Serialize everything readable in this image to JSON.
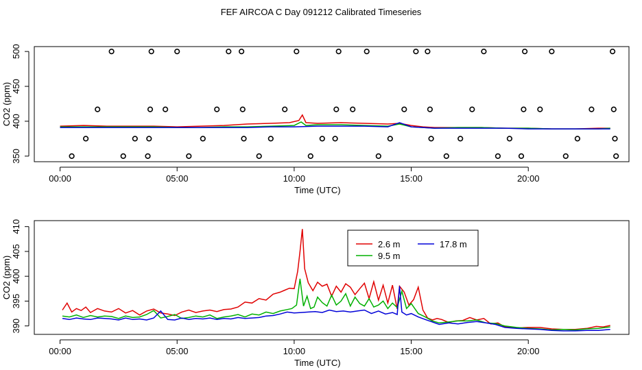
{
  "title": "FEF AIRCOA C  Day 091212  Calibrated Timeseries",
  "colors": {
    "red": "#e00000",
    "green": "#00b000",
    "blue": "#0000d8",
    "black": "#000000"
  },
  "chart_data": [
    {
      "id": "top",
      "type": "line+scatter",
      "xlabel": "Time (UTC)",
      "ylabel": "CO2 (ppm)",
      "xlim": [
        -1.1,
        24.3
      ],
      "ylim": [
        342,
        507
      ],
      "xticks": [
        0,
        5,
        10,
        15,
        20
      ],
      "xtick_labels": [
        "00:00",
        "05:00",
        "10:00",
        "15:00",
        "20:00"
      ],
      "yticks": [
        350,
        400,
        450,
        500
      ],
      "ytick_labels": [
        "350",
        "400",
        "450",
        "500"
      ],
      "markers": {
        "name": "status codes",
        "x": [
          0.5,
          1.1,
          1.6,
          2.2,
          2.7,
          3.2,
          3.75,
          3.8,
          3.85,
          3.9,
          4.5,
          5.0,
          5.5,
          6.1,
          6.7,
          7.2,
          7.75,
          7.8,
          7.85,
          8.5,
          9.0,
          9.6,
          10.1,
          10.7,
          11.2,
          11.75,
          11.8,
          11.9,
          12.5,
          13.1,
          13.6,
          14.1,
          14.7,
          15.2,
          15.7,
          15.8,
          15.85,
          16.5,
          17.1,
          17.6,
          18.1,
          18.7,
          19.2,
          19.7,
          19.8,
          19.85,
          20.5,
          21.0,
          21.6,
          22.1,
          22.7,
          23.6,
          23.65,
          23.7,
          23.75
        ],
        "y": [
          350,
          375,
          417,
          500,
          350,
          375,
          350,
          375,
          417,
          500,
          417,
          500,
          350,
          375,
          417,
          500,
          500,
          417,
          375,
          350,
          375,
          417,
          500,
          350,
          375,
          375,
          417,
          500,
          417,
          500,
          350,
          375,
          417,
          500,
          500,
          417,
          375,
          350,
          375,
          417,
          500,
          350,
          375,
          350,
          417,
          500,
          417,
          500,
          350,
          375,
          417,
          500,
          417,
          375,
          350
        ]
      },
      "series": [
        {
          "name": "2.6 m",
          "color": "#e00000",
          "x": [
            0,
            1,
            2,
            3,
            4,
            5,
            6,
            7,
            8,
            9,
            9.8,
            10.2,
            10.35,
            10.5,
            11,
            12,
            13,
            14,
            14.5,
            15,
            15.5,
            16,
            17,
            18,
            19,
            20,
            21,
            22,
            23,
            23.5
          ],
          "y": [
            393,
            394,
            393,
            393,
            393,
            392,
            393,
            394,
            396,
            397,
            398,
            401,
            409,
            398,
            397,
            398,
            397,
            396,
            397,
            394,
            392,
            391,
            391,
            391,
            390,
            390,
            389,
            389,
            390,
            390
          ]
        },
        {
          "name": "9.5 m",
          "color": "#00b000",
          "x": [
            0,
            1,
            2,
            3,
            4,
            5,
            6,
            7,
            8,
            9,
            10,
            10.3,
            10.5,
            11,
            12,
            13,
            14,
            14.5,
            15,
            16,
            17,
            18,
            19,
            20,
            21,
            22,
            23,
            23.5
          ],
          "y": [
            392,
            392,
            392,
            392,
            392,
            391,
            391,
            392,
            392,
            393,
            394,
            399,
            394,
            395,
            395,
            394,
            393,
            396,
            392,
            390,
            391,
            391,
            390,
            390,
            389,
            389,
            389,
            390
          ]
        },
        {
          "name": "17.8 m",
          "color": "#0000d8",
          "x": [
            0,
            1,
            2,
            3,
            4,
            5,
            6,
            7,
            8,
            9,
            10,
            11,
            12,
            13,
            14,
            14.5,
            15,
            16,
            17,
            18,
            19,
            20,
            21,
            22,
            23,
            23.5
          ],
          "y": [
            391,
            391,
            391,
            391,
            391,
            391,
            391,
            391,
            391,
            392,
            392,
            393,
            393,
            393,
            392,
            398,
            392,
            390,
            390,
            390,
            390,
            389,
            389,
            389,
            389,
            389
          ]
        }
      ]
    },
    {
      "id": "bottom",
      "type": "line",
      "xlabel": "Time (UTC)",
      "ylabel": "CO2 (ppm)",
      "xlim": [
        -1.1,
        24.3
      ],
      "ylim": [
        388.3,
        411.2
      ],
      "xticks": [
        0,
        5,
        10,
        15,
        20
      ],
      "xtick_labels": [
        "00:00",
        "05:00",
        "10:00",
        "15:00",
        "20:00"
      ],
      "yticks": [
        390,
        395,
        400,
        405,
        410
      ],
      "ytick_labels": [
        "390",
        "395",
        "400",
        "405",
        "410"
      ],
      "legend": {
        "position": "top-center",
        "entries": [
          {
            "label": "2.6 m",
            "color": "#e00000"
          },
          {
            "label": "17.8 m",
            "color": "#0000d8"
          },
          {
            "label": "9.5 m",
            "color": "#00b000"
          }
        ]
      },
      "series": [
        {
          "name": "2.6 m",
          "color": "#e00000",
          "x": [
            0.1,
            0.3,
            0.5,
            0.7,
            0.9,
            1.1,
            1.3,
            1.6,
            1.9,
            2.2,
            2.5,
            2.8,
            3.1,
            3.4,
            3.7,
            4.0,
            4.3,
            4.6,
            4.9,
            5.2,
            5.5,
            5.8,
            6.1,
            6.4,
            6.7,
            7.0,
            7.3,
            7.6,
            7.9,
            8.2,
            8.5,
            8.8,
            9.1,
            9.4,
            9.6,
            9.8,
            10.0,
            10.15,
            10.25,
            10.35,
            10.45,
            10.6,
            10.8,
            11.0,
            11.2,
            11.4,
            11.6,
            11.8,
            12.0,
            12.2,
            12.4,
            12.6,
            12.8,
            13.0,
            13.2,
            13.4,
            13.6,
            13.8,
            14.0,
            14.2,
            14.4,
            14.5,
            14.7,
            14.9,
            15.1,
            15.3,
            15.5,
            15.7,
            15.9,
            16.1,
            16.3,
            16.6,
            16.9,
            17.2,
            17.5,
            17.8,
            18.1,
            18.4,
            18.7,
            19.0,
            19.5,
            20.0,
            20.5,
            21.0,
            21.5,
            22.0,
            22.5,
            22.9,
            23.2,
            23.5
          ],
          "y": [
            393.2,
            394.6,
            392.8,
            393.5,
            393.1,
            393.8,
            392.7,
            393.5,
            393.0,
            392.8,
            393.5,
            392.6,
            393.1,
            392.2,
            393.0,
            393.4,
            392.6,
            392.4,
            392.1,
            392.8,
            393.2,
            392.7,
            393.0,
            393.2,
            392.9,
            393.3,
            393.4,
            393.8,
            394.8,
            394.6,
            395.5,
            395.2,
            396.4,
            396.8,
            397.2,
            397.6,
            397.5,
            401.0,
            405.0,
            409.5,
            401.5,
            398.7,
            397.1,
            398.8,
            398.0,
            398.4,
            396.0,
            398.0,
            396.8,
            398.5,
            397.8,
            396.3,
            397.5,
            398.6,
            395.5,
            398.9,
            395.2,
            398.2,
            394.6,
            398.2,
            393.4,
            398.0,
            396.8,
            394.2,
            395.3,
            397.8,
            393.2,
            391.6,
            391.2,
            391.5,
            391.3,
            390.7,
            391.0,
            391.1,
            391.7,
            391.2,
            391.5,
            390.4,
            390.6,
            389.8,
            389.6,
            389.7,
            389.7,
            389.4,
            389.3,
            389.3,
            389.5,
            389.9,
            389.8,
            390.1
          ]
        },
        {
          "name": "9.5 m",
          "color": "#00b000",
          "x": [
            0.1,
            0.4,
            0.7,
            1.0,
            1.3,
            1.6,
            1.9,
            2.2,
            2.5,
            2.8,
            3.1,
            3.4,
            3.7,
            4.0,
            4.3,
            4.6,
            4.9,
            5.2,
            5.5,
            5.8,
            6.1,
            6.4,
            6.7,
            7.0,
            7.3,
            7.6,
            7.9,
            8.2,
            8.5,
            8.8,
            9.1,
            9.4,
            9.7,
            9.9,
            10.1,
            10.25,
            10.4,
            10.55,
            10.7,
            10.85,
            11.0,
            11.2,
            11.4,
            11.6,
            11.8,
            12.0,
            12.2,
            12.4,
            12.6,
            12.8,
            13.0,
            13.2,
            13.4,
            13.6,
            13.8,
            14.0,
            14.2,
            14.4,
            14.6,
            14.8,
            15.0,
            15.3,
            15.6,
            15.9,
            16.2,
            16.6,
            17.0,
            17.4,
            17.8,
            18.2,
            18.6,
            19.0,
            19.5,
            20.0,
            20.5,
            21.0,
            21.5,
            22.0,
            22.5,
            23.0,
            23.5
          ],
          "y": [
            392.0,
            391.8,
            392.2,
            391.7,
            392.1,
            391.8,
            392.0,
            391.9,
            391.5,
            392.0,
            391.7,
            391.8,
            392.3,
            393.1,
            391.6,
            391.9,
            392.3,
            391.5,
            391.7,
            392.0,
            391.8,
            392.2,
            391.5,
            391.8,
            392.0,
            392.3,
            391.8,
            392.4,
            392.2,
            392.8,
            392.5,
            393.0,
            393.3,
            393.5,
            394.2,
            399.5,
            394.0,
            396.0,
            393.5,
            393.8,
            395.8,
            394.7,
            394.0,
            396.2,
            394.2,
            395.0,
            396.5,
            394.0,
            395.8,
            394.5,
            394.0,
            395.5,
            393.8,
            394.2,
            395.0,
            393.5,
            394.6,
            393.7,
            397.0,
            393.5,
            394.5,
            392.5,
            391.8,
            391.0,
            390.6,
            390.8,
            391.0,
            391.0,
            391.2,
            390.6,
            390.5,
            390.0,
            389.7,
            389.5,
            389.4,
            389.2,
            389.3,
            389.2,
            389.4,
            389.5,
            389.8
          ]
        },
        {
          "name": "17.8 m",
          "color": "#0000d8",
          "x": [
            0.1,
            0.4,
            0.7,
            1.0,
            1.3,
            1.6,
            1.9,
            2.2,
            2.5,
            2.8,
            3.1,
            3.4,
            3.7,
            4.0,
            4.3,
            4.6,
            4.9,
            5.2,
            5.5,
            5.8,
            6.1,
            6.4,
            6.7,
            7.0,
            7.3,
            7.6,
            7.9,
            8.2,
            8.5,
            8.8,
            9.1,
            9.4,
            9.7,
            10.0,
            10.3,
            10.6,
            10.9,
            11.2,
            11.5,
            11.8,
            12.1,
            12.4,
            12.7,
            13.0,
            13.3,
            13.6,
            13.9,
            14.2,
            14.4,
            14.5,
            14.6,
            14.8,
            15.0,
            15.3,
            15.6,
            15.9,
            16.2,
            16.6,
            17.0,
            17.4,
            17.8,
            18.2,
            18.6,
            19.0,
            19.5,
            20.0,
            20.5,
            21.0,
            21.5,
            22.0,
            22.5,
            23.0,
            23.5
          ],
          "y": [
            391.5,
            391.3,
            391.6,
            391.4,
            391.3,
            391.6,
            391.5,
            391.4,
            391.2,
            391.6,
            391.3,
            391.4,
            391.2,
            391.6,
            393.0,
            391.3,
            391.2,
            391.6,
            391.3,
            391.5,
            391.4,
            391.6,
            391.3,
            391.5,
            391.4,
            391.7,
            391.5,
            391.6,
            391.7,
            392.0,
            392.1,
            392.4,
            392.8,
            392.6,
            392.7,
            392.8,
            392.9,
            392.7,
            393.2,
            392.9,
            393.0,
            392.8,
            393.0,
            393.2,
            392.5,
            393.0,
            392.4,
            392.7,
            392.3,
            398.0,
            392.8,
            392.2,
            392.5,
            391.8,
            391.3,
            390.8,
            390.3,
            390.6,
            390.4,
            390.7,
            390.9,
            390.6,
            390.3,
            389.7,
            389.5,
            389.4,
            389.3,
            389.1,
            389.0,
            389.0,
            389.1,
            389.1,
            389.3
          ]
        }
      ]
    }
  ]
}
